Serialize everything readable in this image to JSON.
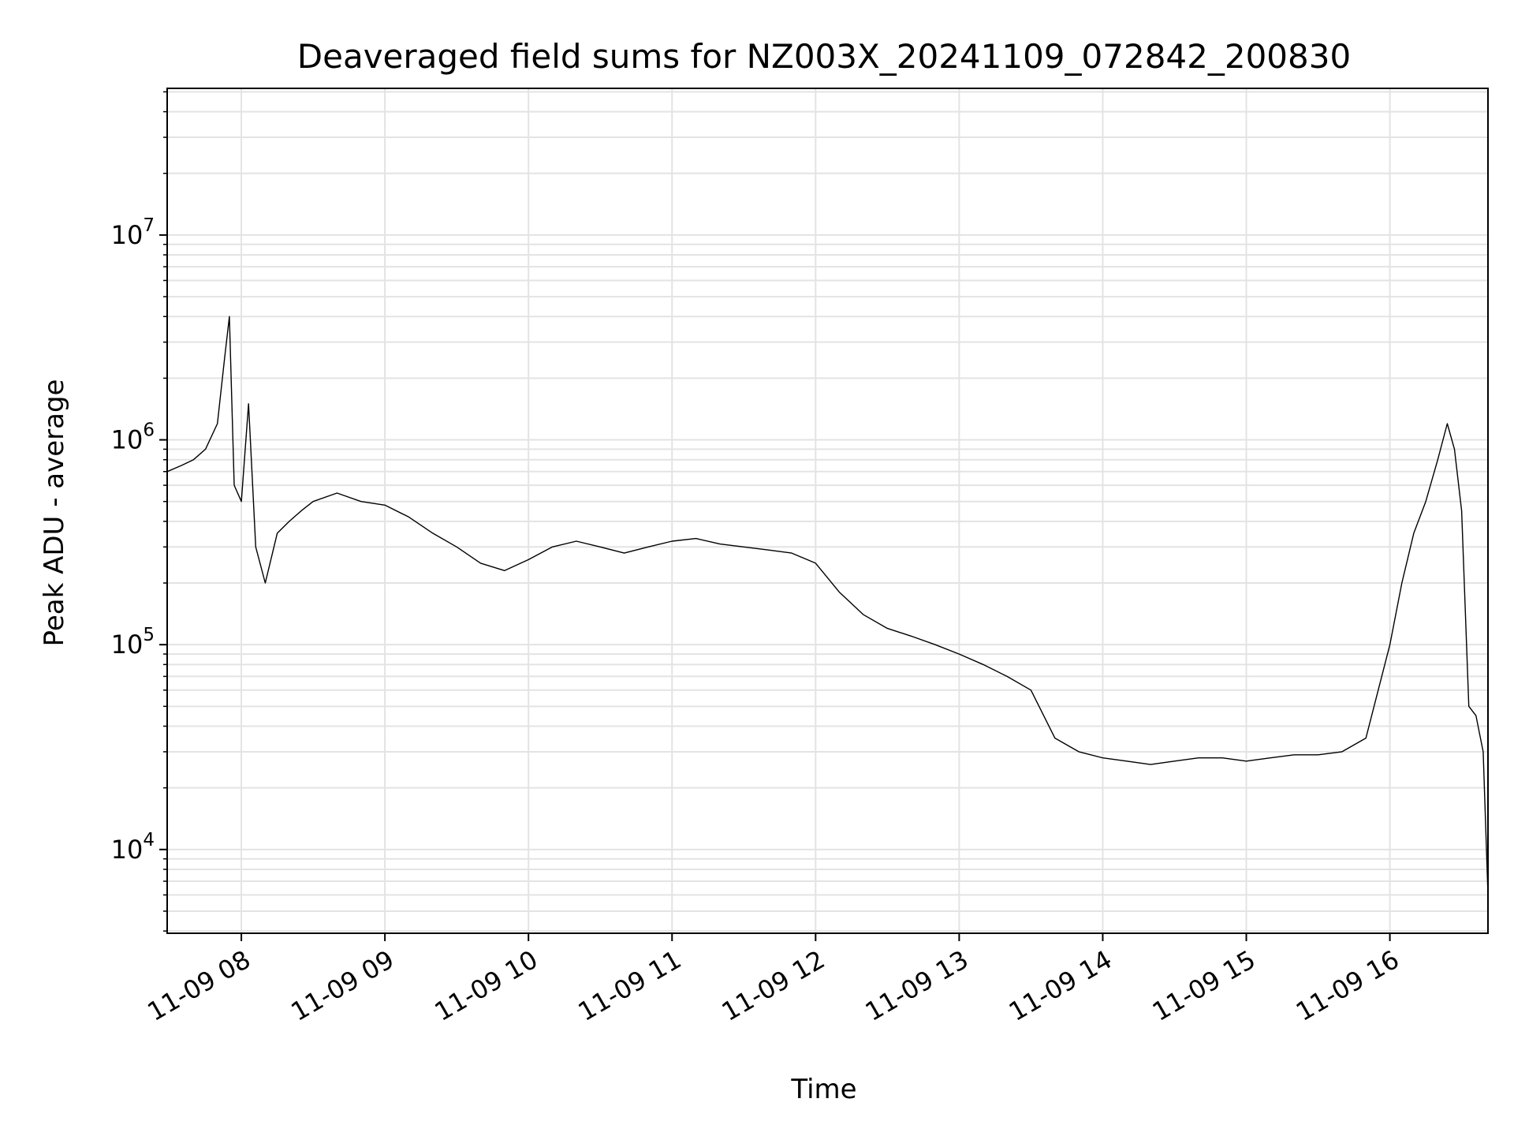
{
  "chart_data": {
    "type": "line",
    "title": "Deaveraged field sums for NZ003X_20241109_072842_200830",
    "xlabel": "Time",
    "ylabel": "Peak ADU - average",
    "y_scale": "log",
    "ylim": [
      3900,
      52000000
    ],
    "xlim": [
      "2024-11-09 07:29",
      "2024-11-09 16:41"
    ],
    "grid": true,
    "line_color": "#000000",
    "x_ticks": [
      {
        "t": "2024-11-09 08:00",
        "label": "11-09 08"
      },
      {
        "t": "2024-11-09 09:00",
        "label": "11-09 09"
      },
      {
        "t": "2024-11-09 10:00",
        "label": "11-09 10"
      },
      {
        "t": "2024-11-09 11:00",
        "label": "11-09 11"
      },
      {
        "t": "2024-11-09 12:00",
        "label": "11-09 12"
      },
      {
        "t": "2024-11-09 13:00",
        "label": "11-09 13"
      },
      {
        "t": "2024-11-09 14:00",
        "label": "11-09 14"
      },
      {
        "t": "2024-11-09 15:00",
        "label": "11-09 15"
      },
      {
        "t": "2024-11-09 16:00",
        "label": "11-09 16"
      }
    ],
    "y_ticks": [
      {
        "value": 10000,
        "base": "10",
        "exp": "4"
      },
      {
        "value": 100000,
        "base": "10",
        "exp": "5"
      },
      {
        "value": 1000000,
        "base": "10",
        "exp": "6"
      },
      {
        "value": 10000000,
        "base": "10",
        "exp": "7"
      }
    ],
    "series": [
      {
        "x": [
          "2024-11-09 07:29",
          "2024-11-09 07:35",
          "2024-11-09 07:40",
          "2024-11-09 07:45",
          "2024-11-09 07:50",
          "2024-11-09 07:53",
          "2024-11-09 07:55",
          "2024-11-09 07:57",
          "2024-11-09 08:00",
          "2024-11-09 08:03",
          "2024-11-09 08:06",
          "2024-11-09 08:10",
          "2024-11-09 08:15",
          "2024-11-09 08:20",
          "2024-11-09 08:25",
          "2024-11-09 08:30",
          "2024-11-09 08:40",
          "2024-11-09 08:50",
          "2024-11-09 09:00",
          "2024-11-09 09:10",
          "2024-11-09 09:20",
          "2024-11-09 09:30",
          "2024-11-09 09:40",
          "2024-11-09 09:50",
          "2024-11-09 10:00",
          "2024-11-09 10:10",
          "2024-11-09 10:20",
          "2024-11-09 10:30",
          "2024-11-09 10:40",
          "2024-11-09 10:50",
          "2024-11-09 11:00",
          "2024-11-09 11:10",
          "2024-11-09 11:20",
          "2024-11-09 11:30",
          "2024-11-09 11:40",
          "2024-11-09 11:50",
          "2024-11-09 12:00",
          "2024-11-09 12:10",
          "2024-11-09 12:20",
          "2024-11-09 12:30",
          "2024-11-09 12:40",
          "2024-11-09 12:50",
          "2024-11-09 13:00",
          "2024-11-09 13:10",
          "2024-11-09 13:20",
          "2024-11-09 13:30",
          "2024-11-09 13:40",
          "2024-11-09 13:50",
          "2024-11-09 14:00",
          "2024-11-09 14:10",
          "2024-11-09 14:20",
          "2024-11-09 14:30",
          "2024-11-09 14:40",
          "2024-11-09 14:50",
          "2024-11-09 15:00",
          "2024-11-09 15:10",
          "2024-11-09 15:20",
          "2024-11-09 15:30",
          "2024-11-09 15:40",
          "2024-11-09 15:50",
          "2024-11-09 16:00",
          "2024-11-09 16:05",
          "2024-11-09 16:10",
          "2024-11-09 16:15",
          "2024-11-09 16:20",
          "2024-11-09 16:24",
          "2024-11-09 16:27",
          "2024-11-09 16:30",
          "2024-11-09 16:33",
          "2024-11-09 16:36",
          "2024-11-09 16:39",
          "2024-11-09 16:41"
        ],
        "y": [
          700000,
          750000,
          800000,
          900000,
          1200000,
          2500000,
          4000000,
          600000,
          500000,
          1500000,
          300000,
          200000,
          350000,
          400000,
          450000,
          500000,
          550000,
          500000,
          480000,
          420000,
          350000,
          300000,
          250000,
          230000,
          260000,
          300000,
          320000,
          300000,
          280000,
          300000,
          320000,
          330000,
          310000,
          300000,
          290000,
          280000,
          250000,
          180000,
          140000,
          120000,
          110000,
          100000,
          90000,
          80000,
          70000,
          60000,
          35000,
          30000,
          28000,
          27000,
          26000,
          27000,
          28000,
          28000,
          27000,
          28000,
          29000,
          29000,
          30000,
          35000,
          100000,
          200000,
          350000,
          500000,
          800000,
          1200000,
          900000,
          450000,
          50000,
          45000,
          30000,
          6000
        ]
      }
    ]
  }
}
